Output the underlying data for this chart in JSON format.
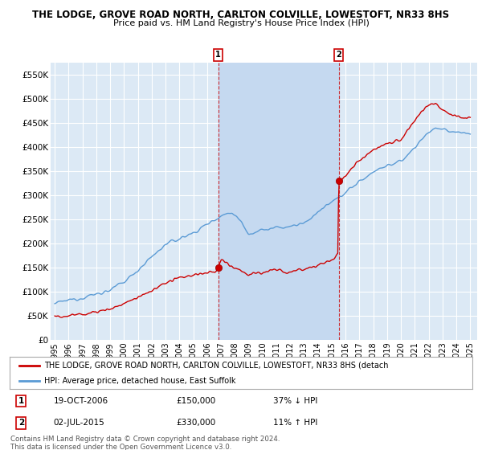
{
  "title1": "THE LODGE, GROVE ROAD NORTH, CARLTON COLVILLE, LOWESTOFT, NR33 8HS",
  "title2": "Price paid vs. HM Land Registry's House Price Index (HPI)",
  "background_color": "#dce9f5",
  "plot_bg": "#dce9f5",
  "grid_color": "#c8d8e8",
  "line_color_hpi": "#5b9bd5",
  "line_color_price": "#cc0000",
  "sale1_date": "19-OCT-2006",
  "sale1_price": 150000,
  "sale1_pct": "37% ↓ HPI",
  "sale2_date": "02-JUL-2015",
  "sale2_price": 330000,
  "sale2_pct": "11% ↑ HPI",
  "legend_label1": "THE LODGE, GROVE ROAD NORTH, CARLTON COLVILLE, LOWESTOFT, NR33 8HS (detach",
  "legend_label2": "HPI: Average price, detached house, East Suffolk",
  "footer": "Contains HM Land Registry data © Crown copyright and database right 2024.\nThis data is licensed under the Open Government Licence v3.0.",
  "ylim": [
    0,
    575000
  ],
  "yticks": [
    0,
    50000,
    100000,
    150000,
    200000,
    250000,
    300000,
    350000,
    400000,
    450000,
    500000,
    550000
  ],
  "ytick_labels": [
    "£0",
    "£50K",
    "£100K",
    "£150K",
    "£200K",
    "£250K",
    "£300K",
    "£350K",
    "£400K",
    "£450K",
    "£500K",
    "£550K"
  ],
  "sale1_x": 2006.8,
  "sale2_x": 2015.5,
  "sale1_y": 150000,
  "sale2_y": 330000,
  "marker_color": "#cc0000",
  "shade_color": "#c5d9f0",
  "xlim_left": 1994.7,
  "xlim_right": 2025.5
}
